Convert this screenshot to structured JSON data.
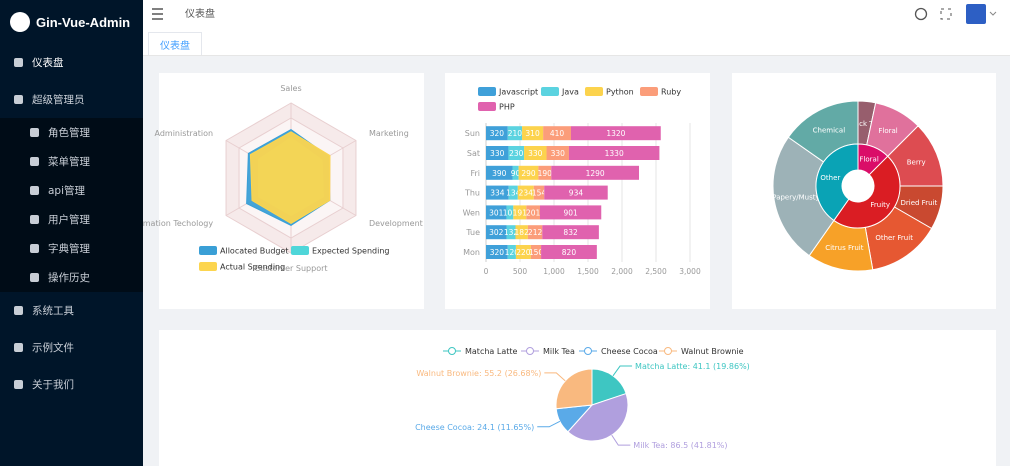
{
  "sidebar": {
    "logo": "Gin-Vue-Admin",
    "menu": [
      {
        "label": "仪表盘"
      },
      {
        "label": "超级管理员",
        "children": [
          "角色管理",
          "菜单管理",
          "api管理",
          "用户管理",
          "字典管理",
          "操作历史"
        ]
      },
      {
        "label": "系统工具"
      },
      {
        "label": "示例文件"
      },
      {
        "label": "关于我们"
      }
    ]
  },
  "header": {
    "breadcrumb": "仪表盘"
  },
  "tabs": [
    "仪表盘"
  ],
  "chart_data": [
    {
      "type": "radar",
      "indicators": [
        {
          "name": "Sales",
          "max": 6500
        },
        {
          "name": "Administration",
          "max": 16000
        },
        {
          "name": "Information Techology",
          "max": 30000
        },
        {
          "name": "Customer Support",
          "max": 38000
        },
        {
          "name": "Development",
          "max": 52000
        },
        {
          "name": "Marketing",
          "max": 25000
        }
      ],
      "series": [
        {
          "name": "Allocated Budget",
          "color": "#3a9fd6",
          "values": [
            4200,
            10500,
            20500,
            24000,
            31000,
            14500
          ]
        },
        {
          "name": "Expected Spending",
          "color": "#4fd6d9",
          "values": [
            3500,
            8000,
            15000,
            19000,
            26000,
            12000
          ]
        },
        {
          "name": "Actual Spending",
          "color": "#fcd54f",
          "values": [
            4000,
            10000,
            18000,
            23000,
            31000,
            15000
          ]
        }
      ]
    },
    {
      "type": "stacked-bar-horizontal",
      "categories": [
        "Mon",
        "Tue",
        "Wen",
        "Thu",
        "Fri",
        "Sat",
        "Sun"
      ],
      "series": [
        {
          "name": "Javascript",
          "color": "#3fa0d9",
          "values": [
            320,
            302,
            301,
            334,
            390,
            330,
            320
          ]
        },
        {
          "name": "Java",
          "color": "#5bd3e0",
          "values": [
            120,
            132,
            101,
            134,
            90,
            230,
            210
          ]
        },
        {
          "name": "Python",
          "color": "#fcd34d",
          "values": [
            220,
            182,
            191,
            234,
            290,
            330,
            310
          ]
        },
        {
          "name": "Ruby",
          "color": "#fb9d7a",
          "values": [
            150,
            212,
            201,
            154,
            190,
            330,
            410
          ]
        },
        {
          "name": "PHP",
          "color": "#e062ae",
          "values": [
            820,
            832,
            901,
            934,
            1290,
            1330,
            1320
          ]
        }
      ],
      "xlim": [
        0,
        3000
      ],
      "xticks": [
        0,
        500,
        {
          "value": 1000,
          "label": "1,000"
        },
        {
          "value": 1500,
          "label": "1,500"
        },
        {
          "value": 2000,
          "label": "2,000"
        },
        {
          "value": 2500,
          "label": "2,500"
        },
        {
          "value": 3000,
          "label": "3,000"
        }
      ],
      "grid": true
    },
    {
      "type": "sunburst",
      "data": [
        {
          "name": "Floral",
          "color": "#da0d68",
          "children": [
            {
              "name": "Black Tea",
              "value": 12,
              "color": "#975e6d"
            },
            {
              "name": "Floral",
              "value": 33,
              "color": "#e0719c"
            }
          ]
        },
        {
          "name": "Fruity",
          "color": "#da1d23",
          "children": [
            {
              "name": "Berry",
              "value": 45,
              "color": "#dd4c51"
            },
            {
              "name": "Dried Fruit",
              "value": 30,
              "color": "#c94930"
            },
            {
              "name": "Other Fruit",
              "value": 50,
              "color": "#e65832"
            },
            {
              "name": "Citrus Fruit",
              "value": 45,
              "color": "#f7a128"
            }
          ]
        },
        {
          "name": "Other",
          "color": "#0aa3b5",
          "children": [
            {
              "name": "Papery/Musty",
              "value": 90,
              "color": "#9db2b7"
            },
            {
              "name": "Chemical",
              "value": 55,
              "color": "#62aaa6"
            }
          ]
        }
      ]
    },
    {
      "type": "pie",
      "categories": [
        "Matcha Latte",
        "Milk Tea",
        "Cheese Cocoa",
        "Walnut Brownie"
      ],
      "values": [
        41.1,
        86.5,
        24.1,
        55.2
      ],
      "value_labels": [
        "Matcha Latte: 41.1 (19.86%)",
        "Milk Tea: 86.5 (41.81%)",
        "Cheese Cocoa: 24.1 (11.65%)",
        "Walnut Brownie: 55.2 (26.68%)"
      ],
      "colors": [
        "#3ec6c2",
        "#b09fde",
        "#5aaae8",
        "#f9b97f"
      ]
    }
  ]
}
